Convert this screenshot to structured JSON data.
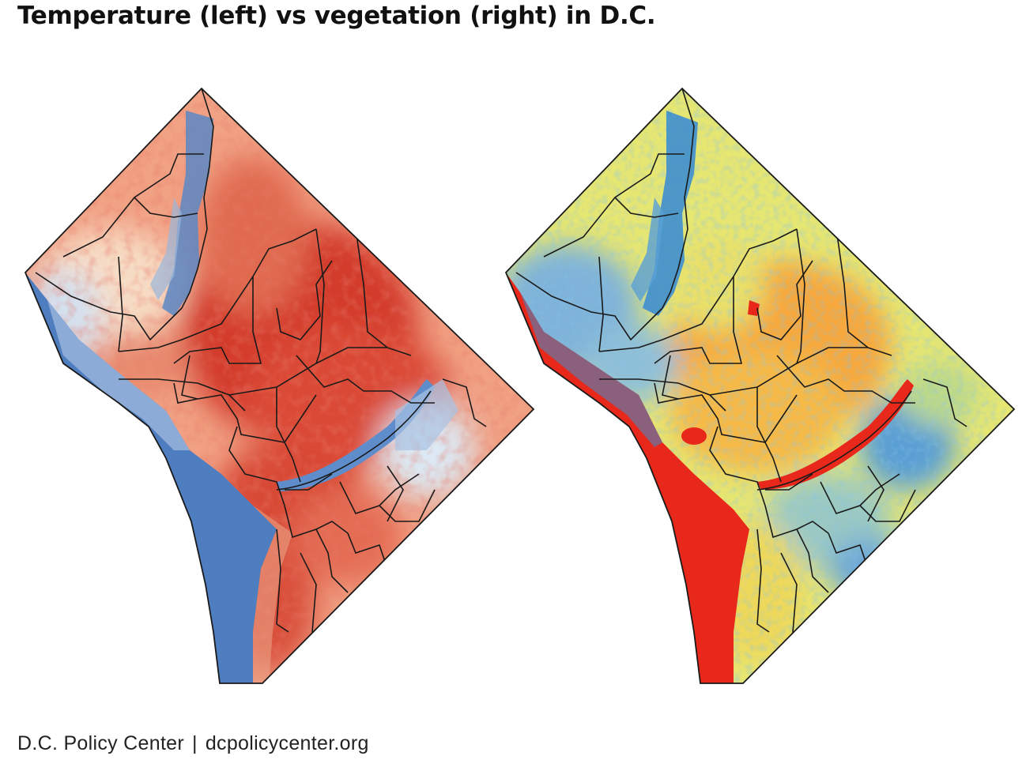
{
  "title": "Temperature (left) vs vegetation (right) in D.C.",
  "footer": {
    "org": "D.C. Policy Center",
    "separator": "|",
    "url": "dcpolicycenter.org"
  },
  "maps": [
    {
      "id": "temperature",
      "colors": {
        "hot": "#d7301f",
        "warm": "#f4a582",
        "mild": "#fde0c5",
        "cool": "#c6dbef",
        "cold": "#4f7ec0"
      }
    },
    {
      "id": "vegetation",
      "colors": {
        "low": "#e8281a",
        "lowmid": "#f8a23a",
        "mid": "#f2e85a",
        "highmid": "#b8d98a",
        "high": "#3d8ed0"
      }
    }
  ]
}
